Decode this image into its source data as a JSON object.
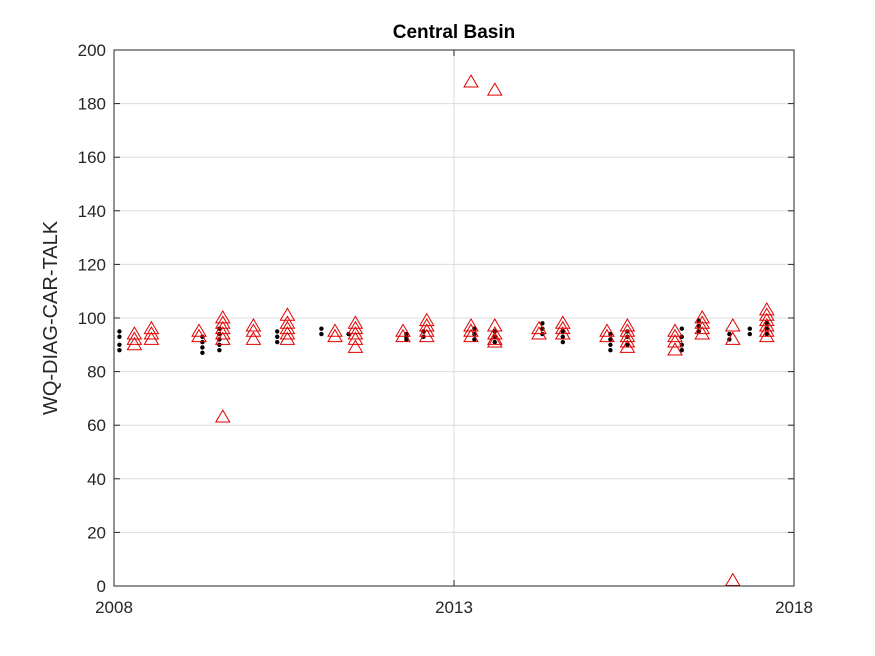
{
  "chart_data": {
    "type": "scatter",
    "title": "Central Basin",
    "xlabel": "",
    "ylabel": "WQ-DIAG-CAR-TALK",
    "xlim": [
      2008,
      2018
    ],
    "ylim": [
      0,
      200
    ],
    "xticks": [
      2008,
      2013,
      2018
    ],
    "yticks": [
      0,
      20,
      40,
      60,
      80,
      100,
      120,
      140,
      160,
      180,
      200
    ],
    "grid": "x=2013 only, y at every tick",
    "legend": "none",
    "colors": {
      "observed": "#000000",
      "modelled": "#e00000"
    },
    "series": [
      {
        "marker": "dot",
        "color": "#000000",
        "points": [
          [
            2008.08,
            95
          ],
          [
            2008.08,
            93
          ],
          [
            2008.08,
            90
          ],
          [
            2008.08,
            88
          ],
          [
            2009.3,
            93
          ],
          [
            2009.3,
            91
          ],
          [
            2009.3,
            89
          ],
          [
            2009.3,
            87
          ],
          [
            2009.55,
            96
          ],
          [
            2009.55,
            94
          ],
          [
            2009.55,
            92
          ],
          [
            2009.55,
            90
          ],
          [
            2009.55,
            88
          ],
          [
            2010.4,
            95
          ],
          [
            2010.4,
            93
          ],
          [
            2010.4,
            91
          ],
          [
            2011.05,
            96
          ],
          [
            2011.05,
            94
          ],
          [
            2011.45,
            94
          ],
          [
            2012.3,
            94
          ],
          [
            2012.3,
            93
          ],
          [
            2012.3,
            92
          ],
          [
            2012.55,
            95
          ],
          [
            2012.55,
            93
          ],
          [
            2013.3,
            96
          ],
          [
            2013.3,
            94
          ],
          [
            2013.3,
            92
          ],
          [
            2013.6,
            95
          ],
          [
            2013.6,
            93
          ],
          [
            2013.6,
            91
          ],
          [
            2014.3,
            98
          ],
          [
            2014.3,
            96
          ],
          [
            2014.3,
            94
          ],
          [
            2014.6,
            95
          ],
          [
            2014.6,
            93
          ],
          [
            2014.6,
            91
          ],
          [
            2015.3,
            94
          ],
          [
            2015.3,
            92
          ],
          [
            2015.3,
            90
          ],
          [
            2015.3,
            88
          ],
          [
            2015.55,
            95
          ],
          [
            2015.55,
            93
          ],
          [
            2015.55,
            90
          ],
          [
            2016.35,
            96
          ],
          [
            2016.35,
            93
          ],
          [
            2016.35,
            90
          ],
          [
            2016.35,
            88
          ],
          [
            2016.6,
            99
          ],
          [
            2016.6,
            97
          ],
          [
            2016.6,
            95
          ],
          [
            2017.05,
            94
          ],
          [
            2017.05,
            92
          ],
          [
            2017.35,
            96
          ],
          [
            2017.35,
            94
          ],
          [
            2017.6,
            98
          ],
          [
            2017.6,
            96
          ],
          [
            2017.6,
            94
          ]
        ]
      },
      {
        "marker": "triangle",
        "color": "#e00000",
        "points": [
          [
            2008.3,
            94
          ],
          [
            2008.3,
            92
          ],
          [
            2008.3,
            90
          ],
          [
            2008.55,
            96
          ],
          [
            2008.55,
            94
          ],
          [
            2008.55,
            92
          ],
          [
            2009.25,
            95
          ],
          [
            2009.25,
            93
          ],
          [
            2009.6,
            100
          ],
          [
            2009.6,
            98
          ],
          [
            2009.6,
            96
          ],
          [
            2009.6,
            94
          ],
          [
            2009.6,
            92
          ],
          [
            2009.6,
            63
          ],
          [
            2010.05,
            97
          ],
          [
            2010.05,
            95
          ],
          [
            2010.05,
            92
          ],
          [
            2010.55,
            101
          ],
          [
            2010.55,
            98
          ],
          [
            2010.55,
            96
          ],
          [
            2010.55,
            94
          ],
          [
            2010.55,
            92
          ],
          [
            2011.25,
            95
          ],
          [
            2011.25,
            93
          ],
          [
            2011.55,
            98
          ],
          [
            2011.55,
            96
          ],
          [
            2011.55,
            94
          ],
          [
            2011.55,
            92
          ],
          [
            2011.55,
            89
          ],
          [
            2012.25,
            95
          ],
          [
            2012.25,
            93
          ],
          [
            2012.6,
            99
          ],
          [
            2012.6,
            97
          ],
          [
            2012.6,
            95
          ],
          [
            2012.6,
            93
          ],
          [
            2013.25,
            97
          ],
          [
            2013.25,
            95
          ],
          [
            2013.25,
            93
          ],
          [
            2013.25,
            188
          ],
          [
            2013.6,
            97
          ],
          [
            2013.6,
            94
          ],
          [
            2013.6,
            92
          ],
          [
            2013.6,
            91
          ],
          [
            2013.6,
            185
          ],
          [
            2014.25,
            96
          ],
          [
            2014.25,
            94
          ],
          [
            2014.6,
            98
          ],
          [
            2014.6,
            96
          ],
          [
            2014.6,
            94
          ],
          [
            2015.25,
            95
          ],
          [
            2015.25,
            93
          ],
          [
            2015.55,
            97
          ],
          [
            2015.55,
            95
          ],
          [
            2015.55,
            93
          ],
          [
            2015.55,
            91
          ],
          [
            2015.55,
            89
          ],
          [
            2016.25,
            95
          ],
          [
            2016.25,
            93
          ],
          [
            2016.25,
            91
          ],
          [
            2016.25,
            88
          ],
          [
            2016.65,
            100
          ],
          [
            2016.65,
            98
          ],
          [
            2016.65,
            96
          ],
          [
            2016.65,
            94
          ],
          [
            2017.1,
            97
          ],
          [
            2017.1,
            92
          ],
          [
            2017.1,
            2
          ],
          [
            2017.6,
            103
          ],
          [
            2017.6,
            101
          ],
          [
            2017.6,
            99
          ],
          [
            2017.6,
            97
          ],
          [
            2017.6,
            95
          ],
          [
            2017.6,
            93
          ]
        ]
      }
    ]
  }
}
